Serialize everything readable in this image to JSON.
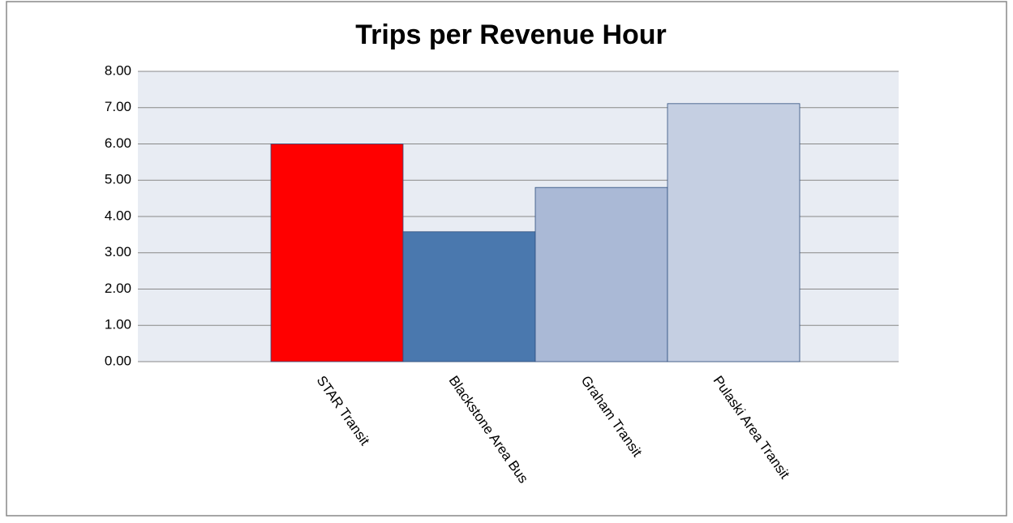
{
  "chart_data": {
    "type": "bar",
    "title": "Trips per Revenue Hour",
    "categories": [
      "STAR Transit",
      "Blackstone Area Bus",
      "Graham Transit",
      "Pulaski Area Transit"
    ],
    "values": [
      6.0,
      3.58,
      4.8,
      7.11
    ],
    "colors": [
      "#ff0000",
      "#4a78ae",
      "#aab9d6",
      "#c5cfe2"
    ],
    "ylim": [
      0,
      8
    ],
    "yticks": [
      {
        "value": 0,
        "label": "0.00"
      },
      {
        "value": 1,
        "label": "1.00"
      },
      {
        "value": 2,
        "label": "2.00"
      },
      {
        "value": 3,
        "label": "3.00"
      },
      {
        "value": 4,
        "label": "4.00"
      },
      {
        "value": 5,
        "label": "5.00"
      },
      {
        "value": 6,
        "label": "6.00"
      },
      {
        "value": 7,
        "label": "7.00"
      },
      {
        "value": 8,
        "label": "8.00"
      }
    ],
    "grid": true
  }
}
